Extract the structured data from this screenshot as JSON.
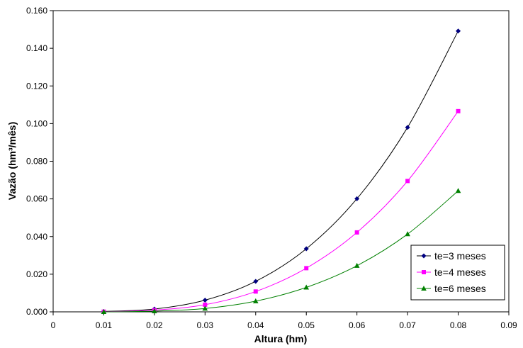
{
  "chart_data": {
    "type": "line",
    "title": "",
    "xlabel": "Altura (hm)",
    "ylabel": "Vazão (hm³/mês)",
    "xlim": [
      0,
      0.09
    ],
    "ylim": [
      0,
      0.16
    ],
    "x_ticks": [
      "0",
      "0.01",
      "0.02",
      "0.03",
      "0.04",
      "0.05",
      "0.06",
      "0.07",
      "0.08",
      "0.09"
    ],
    "y_ticks": [
      "0.000",
      "0.020",
      "0.040",
      "0.060",
      "0.080",
      "0.100",
      "0.120",
      "0.140",
      "0.160"
    ],
    "grid": false,
    "legend_position": "bottom-right",
    "x": [
      0.01,
      0.02,
      0.03,
      0.04,
      0.05,
      0.06,
      0.07,
      0.08
    ],
    "series": [
      {
        "name": "te=3 meses",
        "color": "#000080",
        "line_color": "#000000",
        "marker": "diamond",
        "values": [
          0.0002,
          0.0015,
          0.0062,
          0.0162,
          0.0335,
          0.0601,
          0.098,
          0.1492
        ]
      },
      {
        "name": "te=4 meses",
        "color": "#ff00ff",
        "line_color": "#ff00ff",
        "marker": "square",
        "values": [
          0.0001,
          0.0009,
          0.0038,
          0.0108,
          0.0232,
          0.0422,
          0.0695,
          0.1066
        ]
      },
      {
        "name": "te=6 meses",
        "color": "#008000",
        "line_color": "#008000",
        "marker": "triangle",
        "values": [
          0.0,
          0.0004,
          0.0018,
          0.0057,
          0.013,
          0.0245,
          0.0413,
          0.0643
        ]
      }
    ]
  }
}
